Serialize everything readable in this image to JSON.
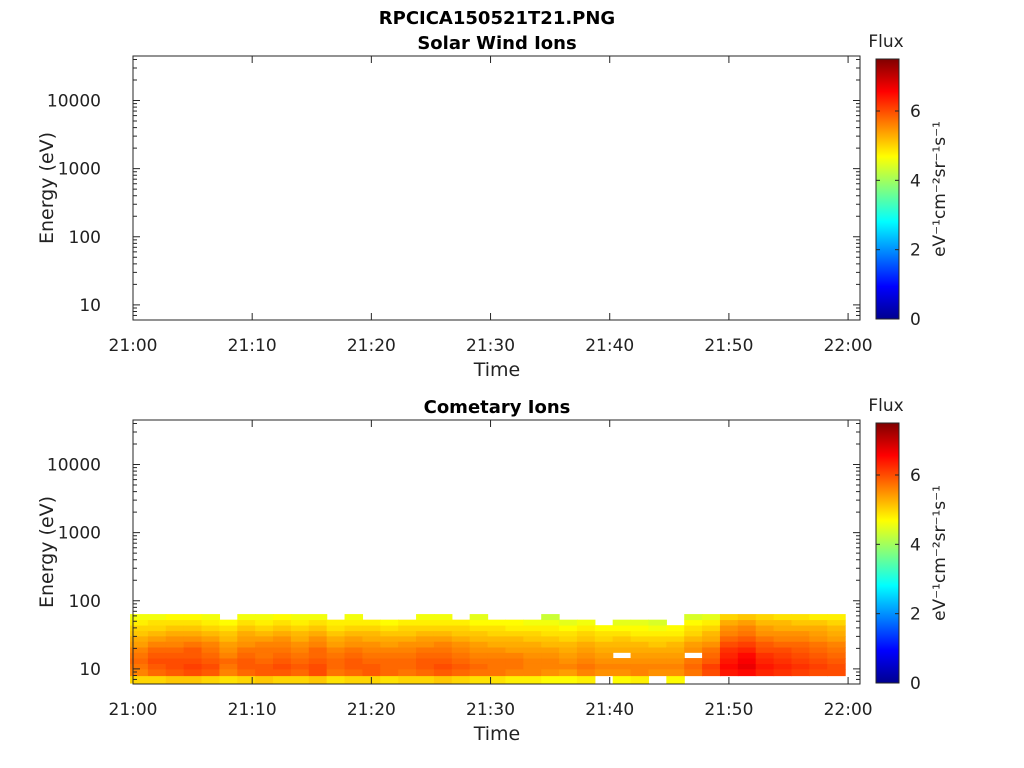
{
  "figure_title": "RPCICA150521T21.PNG",
  "chart_data": [
    {
      "type": "heatmap",
      "title": "Solar Wind Ions",
      "xlabel": "Time",
      "ylabel": "Energy (eV)",
      "x_ticks": [
        "21:00",
        "21:10",
        "21:20",
        "21:30",
        "21:40",
        "21:50",
        "22:00"
      ],
      "y_ticks": [
        "10",
        "100",
        "1000",
        "10000"
      ],
      "y_scale": "log",
      "xlim": [
        "21:00",
        "22:01"
      ],
      "ylim": [
        6,
        45000
      ],
      "colorbar": {
        "label": "Flux",
        "unit": "eV⁻¹cm⁻²sr⁻¹s⁻¹",
        "ticks": [
          "0",
          "2",
          "4",
          "6"
        ],
        "range": [
          0,
          7.5
        ],
        "colormap": "jet"
      },
      "columns": []
    },
    {
      "type": "heatmap",
      "title": "Cometary Ions",
      "xlabel": "Time",
      "ylabel": "Energy (eV)",
      "x_ticks": [
        "21:00",
        "21:10",
        "21:20",
        "21:30",
        "21:40",
        "21:50",
        "22:00"
      ],
      "y_ticks": [
        "10",
        "100",
        "1000",
        "10000"
      ],
      "y_scale": "log",
      "xlim": [
        "21:00",
        "22:01"
      ],
      "ylim": [
        6,
        45000
      ],
      "colorbar": {
        "label": "Flux",
        "unit": "eV⁻¹cm⁻²sr⁻¹s⁻¹",
        "ticks": [
          "0",
          "2",
          "4",
          "6"
        ],
        "range": [
          0,
          7.5
        ],
        "colormap": "jet"
      },
      "energy_bins_eV": [
        7,
        9,
        11,
        13,
        16,
        19,
        23,
        28,
        33,
        40,
        48,
        58
      ],
      "columns": [
        {
          "time": "21:00:30",
          "flux": [
            5.0,
            5.6,
            5.7,
            5.8,
            5.7,
            5.6,
            5.4,
            5.3,
            5.1,
            5.0,
            4.8,
            4.6
          ]
        },
        {
          "time": "21:02:00",
          "flux": [
            5.0,
            5.8,
            5.9,
            6.0,
            5.9,
            5.8,
            5.6,
            5.4,
            5.2,
            5.0,
            4.9,
            4.6
          ]
        },
        {
          "time": "21:03:30",
          "flux": [
            5.1,
            5.9,
            6.0,
            6.0,
            5.9,
            5.8,
            5.6,
            5.5,
            5.3,
            5.1,
            4.9,
            4.7
          ]
        },
        {
          "time": "21:05:00",
          "flux": [
            5.1,
            6.0,
            6.1,
            6.0,
            5.9,
            5.9,
            5.7,
            5.5,
            5.3,
            5.1,
            4.9,
            4.7
          ]
        },
        {
          "time": "21:06:30",
          "flux": [
            5.0,
            5.9,
            6.0,
            5.9,
            5.8,
            5.7,
            5.6,
            5.4,
            5.2,
            5.0,
            4.8,
            4.6
          ]
        },
        {
          "time": "21:08:00",
          "flux": [
            4.9,
            5.6,
            5.7,
            5.8,
            5.6,
            5.5,
            5.4,
            5.2,
            5.1,
            4.9,
            4.7,
            0
          ]
        },
        {
          "time": "21:09:30",
          "flux": [
            5.0,
            5.8,
            5.9,
            5.9,
            5.8,
            5.7,
            5.5,
            5.4,
            5.3,
            5.1,
            4.9,
            4.6
          ]
        },
        {
          "time": "21:11:00",
          "flux": [
            5.1,
            5.9,
            5.9,
            5.8,
            5.7,
            5.7,
            5.6,
            5.4,
            5.2,
            5.0,
            4.8,
            4.6
          ]
        },
        {
          "time": "21:12:30",
          "flux": [
            5.0,
            5.9,
            6.0,
            5.9,
            5.8,
            5.7,
            5.6,
            5.5,
            5.3,
            5.1,
            4.9,
            4.7
          ]
        },
        {
          "time": "21:14:00",
          "flux": [
            5.0,
            5.8,
            5.9,
            5.8,
            5.7,
            5.6,
            5.5,
            5.3,
            5.2,
            5.0,
            4.8,
            4.6
          ]
        },
        {
          "time": "21:15:30",
          "flux": [
            5.1,
            6.0,
            6.0,
            5.9,
            5.8,
            5.8,
            5.6,
            5.5,
            5.3,
            5.1,
            4.9,
            4.6
          ]
        },
        {
          "time": "21:17:00",
          "flux": [
            4.9,
            5.7,
            5.8,
            5.8,
            5.7,
            5.6,
            5.4,
            5.3,
            5.1,
            4.9,
            4.8,
            0
          ]
        },
        {
          "time": "21:18:30",
          "flux": [
            5.0,
            5.8,
            5.9,
            5.9,
            5.8,
            5.7,
            5.5,
            5.4,
            5.2,
            5.0,
            4.8,
            4.6
          ]
        },
        {
          "time": "21:20:00",
          "flux": [
            5.0,
            5.9,
            5.9,
            5.8,
            5.7,
            5.6,
            5.5,
            5.3,
            5.2,
            5.0,
            4.8,
            0
          ]
        },
        {
          "time": "21:21:30",
          "flux": [
            4.9,
            5.8,
            5.8,
            5.8,
            5.7,
            5.6,
            5.4,
            5.3,
            5.1,
            4.9,
            4.7,
            0
          ]
        },
        {
          "time": "21:23:00",
          "flux": [
            5.0,
            5.7,
            5.8,
            5.8,
            5.7,
            5.6,
            5.5,
            5.3,
            5.1,
            5.0,
            4.8,
            0
          ]
        },
        {
          "time": "21:24:30",
          "flux": [
            5.0,
            5.8,
            5.9,
            5.9,
            5.8,
            5.7,
            5.5,
            5.4,
            5.2,
            5.0,
            4.8,
            4.6
          ]
        },
        {
          "time": "21:26:00",
          "flux": [
            5.1,
            5.9,
            6.0,
            5.9,
            5.8,
            5.7,
            5.6,
            5.4,
            5.2,
            5.0,
            4.8,
            4.6
          ]
        },
        {
          "time": "21:27:30",
          "flux": [
            5.0,
            5.8,
            5.9,
            5.8,
            5.7,
            5.6,
            5.5,
            5.3,
            5.1,
            5.0,
            4.8,
            0
          ]
        },
        {
          "time": "21:29:00",
          "flux": [
            4.9,
            5.7,
            5.8,
            5.7,
            5.6,
            5.5,
            5.4,
            5.2,
            5.1,
            4.9,
            4.7,
            4.5
          ]
        },
        {
          "time": "21:30:30",
          "flux": [
            4.9,
            5.7,
            5.7,
            5.7,
            5.6,
            5.5,
            5.3,
            5.2,
            5.0,
            4.9,
            4.7,
            0
          ]
        },
        {
          "time": "21:32:00",
          "flux": [
            4.8,
            5.6,
            5.7,
            5.7,
            5.6,
            5.4,
            5.3,
            5.2,
            5.0,
            4.8,
            4.7,
            0
          ]
        },
        {
          "time": "21:33:30",
          "flux": [
            4.8,
            5.6,
            5.6,
            5.6,
            5.5,
            5.4,
            5.3,
            5.1,
            5.0,
            4.8,
            4.6,
            0
          ]
        },
        {
          "time": "21:35:00",
          "flux": [
            4.7,
            5.5,
            5.6,
            5.6,
            5.5,
            5.4,
            5.2,
            5.1,
            4.9,
            4.8,
            4.6,
            4.3
          ]
        },
        {
          "time": "21:36:30",
          "flux": [
            4.7,
            5.4,
            5.6,
            5.5,
            5.4,
            5.3,
            5.2,
            5.0,
            4.9,
            4.7,
            4.5,
            0
          ]
        },
        {
          "time": "21:38:00",
          "flux": [
            4.8,
            5.6,
            5.7,
            5.6,
            5.5,
            5.4,
            5.3,
            5.1,
            5.0,
            4.8,
            4.6,
            0
          ]
        },
        {
          "time": "21:39:30",
          "flux": [
            0,
            5.5,
            5.6,
            5.5,
            5.4,
            5.3,
            5.2,
            5.0,
            4.9,
            4.7,
            0,
            0
          ]
        },
        {
          "time": "21:41:00",
          "flux": [
            4.7,
            5.5,
            5.6,
            5.5,
            0,
            5.3,
            5.2,
            5.1,
            4.9,
            4.7,
            4.5,
            0
          ]
        },
        {
          "time": "21:42:30",
          "flux": [
            4.8,
            5.6,
            5.6,
            5.5,
            5.4,
            5.3,
            5.2,
            5.0,
            4.8,
            4.7,
            4.5,
            0
          ]
        },
        {
          "time": "21:44:00",
          "flux": [
            0,
            5.5,
            5.6,
            5.5,
            5.4,
            5.3,
            5.1,
            5.0,
            4.8,
            4.6,
            4.4,
            0
          ]
        },
        {
          "time": "21:45:30",
          "flux": [
            4.7,
            5.5,
            5.6,
            5.5,
            5.4,
            5.3,
            5.2,
            5.0,
            4.8,
            4.7,
            0,
            0
          ]
        },
        {
          "time": "21:47:00",
          "flux": [
            0,
            5.7,
            5.8,
            5.7,
            0,
            5.5,
            5.4,
            5.2,
            5.0,
            4.9,
            4.7,
            4.4
          ]
        },
        {
          "time": "21:48:30",
          "flux": [
            0,
            6.0,
            6.1,
            5.9,
            5.8,
            5.7,
            5.5,
            5.3,
            5.2,
            5.0,
            4.8,
            4.5
          ]
        },
        {
          "time": "21:50:00",
          "flux": [
            0,
            6.4,
            6.5,
            6.4,
            6.3,
            6.2,
            6.0,
            5.8,
            5.6,
            5.5,
            5.3,
            5.0
          ]
        },
        {
          "time": "21:51:30",
          "flux": [
            0,
            6.5,
            6.7,
            6.6,
            6.5,
            6.3,
            6.1,
            5.9,
            5.7,
            5.6,
            5.4,
            5.1
          ]
        },
        {
          "time": "21:53:00",
          "flux": [
            0,
            6.3,
            6.4,
            6.3,
            6.2,
            6.0,
            5.9,
            5.7,
            5.5,
            5.4,
            5.2,
            5.0
          ]
        },
        {
          "time": "21:54:30",
          "flux": [
            0,
            6.2,
            6.3,
            6.2,
            6.1,
            6.0,
            5.8,
            5.6,
            5.5,
            5.3,
            5.2,
            4.9
          ]
        },
        {
          "time": "21:56:00",
          "flux": [
            0,
            6.1,
            6.2,
            6.1,
            6.0,
            5.9,
            5.8,
            5.6,
            5.5,
            5.3,
            5.1,
            4.9
          ]
        },
        {
          "time": "21:57:30",
          "flux": [
            0,
            6.0,
            6.1,
            6.0,
            5.9,
            5.8,
            5.7,
            5.5,
            5.4,
            5.3,
            5.1,
            4.8
          ]
        },
        {
          "time": "21:59:00",
          "flux": [
            0,
            6.0,
            6.0,
            5.9,
            5.8,
            5.7,
            5.6,
            5.4,
            5.3,
            5.2,
            5.0,
            4.8
          ]
        }
      ]
    }
  ]
}
